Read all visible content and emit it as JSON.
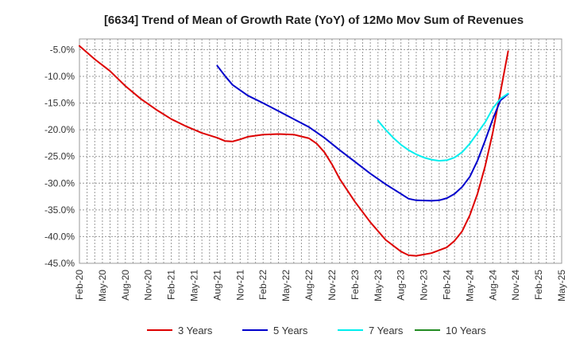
{
  "chart_data": {
    "type": "line",
    "title": "[6634]  Trend of Mean of Growth Rate (YoY) of 12Mo Mov Sum of Revenues",
    "xlabel": "",
    "ylabel": "",
    "ylim": [
      -45,
      -3
    ],
    "yticks": [
      -5,
      -10,
      -15,
      -20,
      -25,
      -30,
      -35,
      -40,
      -45
    ],
    "ytick_labels": [
      "-5.0%",
      "-10.0%",
      "-15.0%",
      "-20.0%",
      "-25.0%",
      "-30.0%",
      "-35.0%",
      "-40.0%",
      "-45.0%"
    ],
    "xlim": [
      0,
      63
    ],
    "xticks": [
      0,
      3,
      6,
      9,
      12,
      15,
      18,
      21,
      24,
      27,
      30,
      33,
      36,
      39,
      42,
      45,
      48,
      51,
      54,
      57,
      60,
      63
    ],
    "xtick_labels": [
      "Feb-20",
      "May-20",
      "Aug-20",
      "Nov-20",
      "Feb-21",
      "May-21",
      "Aug-21",
      "Nov-21",
      "Feb-22",
      "May-22",
      "Aug-22",
      "Nov-22",
      "Feb-23",
      "May-23",
      "Aug-23",
      "Nov-23",
      "Feb-24",
      "May-24",
      "Aug-24",
      "Nov-24",
      "Feb-25",
      "May-25"
    ],
    "grid": true,
    "legend_position": "bottom",
    "series": [
      {
        "name": "3 Years",
        "color": "#dd0000",
        "points": [
          [
            0,
            -4.3
          ],
          [
            2,
            -6.8
          ],
          [
            4,
            -9.0
          ],
          [
            6,
            -11.8
          ],
          [
            8,
            -14.2
          ],
          [
            10,
            -16.2
          ],
          [
            12,
            -18.0
          ],
          [
            14,
            -19.4
          ],
          [
            16,
            -20.6
          ],
          [
            18,
            -21.5
          ],
          [
            19,
            -22.1
          ],
          [
            20,
            -22.2
          ],
          [
            21,
            -21.8
          ],
          [
            22,
            -21.3
          ],
          [
            24,
            -20.9
          ],
          [
            26,
            -20.8
          ],
          [
            28,
            -20.9
          ],
          [
            30,
            -21.6
          ],
          [
            31,
            -22.6
          ],
          [
            32,
            -24.2
          ],
          [
            33,
            -26.5
          ],
          [
            34,
            -29.2
          ],
          [
            36,
            -33.5
          ],
          [
            38,
            -37.3
          ],
          [
            40,
            -40.6
          ],
          [
            42,
            -42.8
          ],
          [
            43,
            -43.5
          ],
          [
            44,
            -43.6
          ],
          [
            46,
            -43.1
          ],
          [
            48,
            -42.0
          ],
          [
            49,
            -40.8
          ],
          [
            50,
            -39.0
          ],
          [
            51,
            -36.0
          ],
          [
            52,
            -32.0
          ],
          [
            53,
            -26.8
          ],
          [
            54,
            -20.5
          ],
          [
            55,
            -13.0
          ],
          [
            56,
            -5.3
          ]
        ]
      },
      {
        "name": "5 Years",
        "color": "#0000cc",
        "points": [
          [
            18,
            -8.0
          ],
          [
            19,
            -9.9
          ],
          [
            20,
            -11.6
          ],
          [
            22,
            -13.6
          ],
          [
            24,
            -15.0
          ],
          [
            26,
            -16.5
          ],
          [
            28,
            -18.0
          ],
          [
            30,
            -19.5
          ],
          [
            32,
            -21.5
          ],
          [
            34,
            -23.8
          ],
          [
            36,
            -26.0
          ],
          [
            38,
            -28.2
          ],
          [
            40,
            -30.2
          ],
          [
            42,
            -32.0
          ],
          [
            43,
            -32.9
          ],
          [
            44,
            -33.2
          ],
          [
            46,
            -33.3
          ],
          [
            47,
            -33.2
          ],
          [
            48,
            -32.8
          ],
          [
            49,
            -32.0
          ],
          [
            50,
            -30.7
          ],
          [
            51,
            -28.8
          ],
          [
            52,
            -25.8
          ],
          [
            53,
            -22.0
          ],
          [
            54,
            -18.0
          ],
          [
            55,
            -14.5
          ],
          [
            56,
            -13.3
          ]
        ]
      },
      {
        "name": "7 Years",
        "color": "#00eeee",
        "points": [
          [
            39,
            -18.3
          ],
          [
            40,
            -20.0
          ],
          [
            41,
            -21.5
          ],
          [
            42,
            -22.8
          ],
          [
            43,
            -23.8
          ],
          [
            44,
            -24.6
          ],
          [
            45,
            -25.2
          ],
          [
            46,
            -25.6
          ],
          [
            47,
            -25.8
          ],
          [
            48,
            -25.7
          ],
          [
            49,
            -25.2
          ],
          [
            50,
            -24.2
          ],
          [
            51,
            -22.6
          ],
          [
            52,
            -20.6
          ],
          [
            53,
            -18.6
          ],
          [
            54,
            -16.0
          ],
          [
            55,
            -14.2
          ],
          [
            56,
            -13.2
          ]
        ]
      },
      {
        "name": "10 Years",
        "color": "#228b22",
        "points": []
      }
    ]
  }
}
